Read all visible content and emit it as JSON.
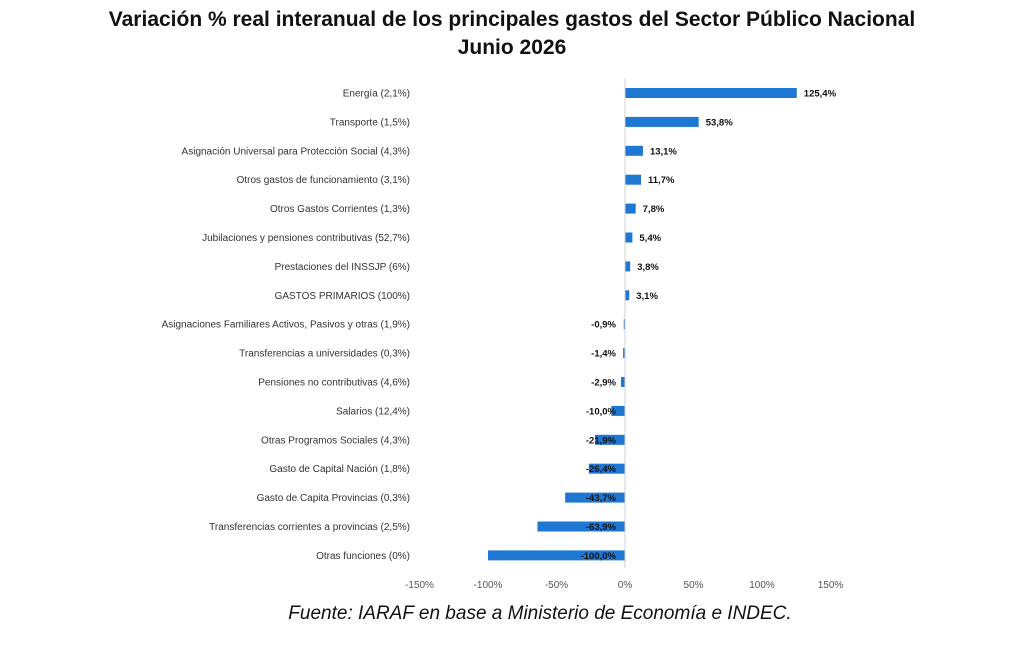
{
  "chart_data": {
    "type": "bar",
    "orientation": "horizontal",
    "title": "Variación % real interanual de los principales gastos del Sector Público Nacional",
    "subtitle": "Junio 2026",
    "categories": [
      "Energía (2,1%)",
      "Transporte (1,5%)",
      "Asignación Universal para Protección Social (4,3%)",
      "Otros gastos de funcionamiento (3,1%)",
      "Otros Gastos Corrientes      (1,3%)",
      "Jubilaciones y pensiones contributivas (52,7%)",
      "Prestaciones del INSSJP (6%)",
      "GASTOS PRIMARIOS (100%)",
      "Asignaciones Familiares Activos, Pasivos y otras (1,9%)",
      "Transferencias a universidades (0,3%)",
      "Pensiones no contributivas (4,6%)",
      "Salarios (12,4%)",
      "Otras Programos Sociales  (4,3%)",
      "Gasto de Capital Nación (1,8%)",
      "Gasto de Capita Provincias (0,3%)",
      "Transferencias corrientes a provincias (2,5%)",
      "Otras funciones   (0%)"
    ],
    "values": [
      125.4,
      53.8,
      13.1,
      11.7,
      7.8,
      5.4,
      3.8,
      3.1,
      -0.9,
      -1.4,
      -2.9,
      -10.0,
      -21.9,
      -26.4,
      -43.7,
      -63.9,
      -100.0
    ],
    "value_labels": [
      "125,4%",
      "53,8%",
      "13,1%",
      "11,7%",
      "7,8%",
      "5,4%",
      "3,8%",
      "3,1%",
      "-0,9%",
      "-1,4%",
      "-2,9%",
      "-10,0%",
      "-21,9%",
      "-26,4%",
      "-43,7%",
      "-63,9%",
      "-100,0%"
    ],
    "xlim": [
      -150,
      150
    ],
    "xticks": [
      -150,
      -100,
      -50,
      0,
      50,
      100,
      150
    ],
    "xtick_labels": [
      "-150%",
      "-100%",
      "-50%",
      "0%",
      "50%",
      "100%",
      "150%"
    ],
    "bar_color": "#1f77d4",
    "grid": false,
    "legend": "none"
  },
  "source": "Fuente: IARAF en base a Ministerio de Economía e INDEC."
}
